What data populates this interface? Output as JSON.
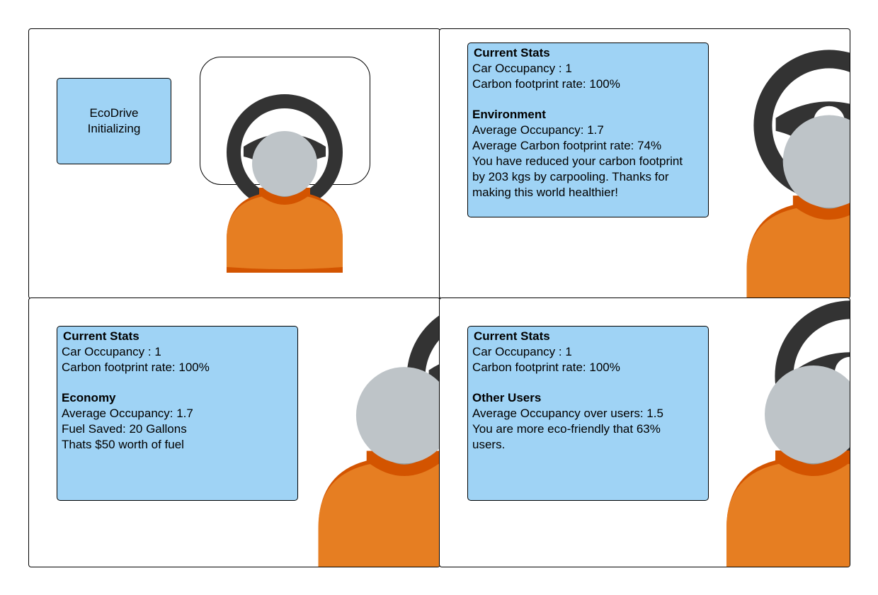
{
  "panel1": {
    "status": {
      "line1": "EcoDrive",
      "line2": "Initializing"
    },
    "icons": {
      "wheel": "steering-wheel-icon",
      "driver": "driver-avatar-icon"
    }
  },
  "panel2": {
    "current": {
      "title": "Current Stats",
      "occupancy": "Car Occupancy : 1",
      "rate": "Carbon footprint rate: 100%"
    },
    "section": {
      "title": "Environment",
      "lines": [
        "Average Occupancy: 1.7",
        "Average Carbon footprint rate: 74%",
        "You have reduced your carbon footprint",
        "by 203 kgs by carpooling. Thanks for",
        "making this world healthier!"
      ]
    }
  },
  "panel3": {
    "current": {
      "title": "Current Stats",
      "occupancy": "Car Occupancy : 1",
      "rate": "Carbon footprint rate: 100%"
    },
    "section": {
      "title": "Economy",
      "lines": [
        "Average Occupancy: 1.7",
        "Fuel Saved: 20 Gallons",
        "Thats $50 worth of fuel"
      ]
    }
  },
  "panel4": {
    "current": {
      "title": "Current Stats",
      "occupancy": "Car Occupancy : 1",
      "rate": "Carbon footprint rate: 100%"
    },
    "section": {
      "title": "Other Users",
      "lines": [
        "Average Occupancy over users: 1.5",
        "You are more eco-friendly that 63%",
        "users."
      ]
    }
  },
  "colors": {
    "box_fill": "#9fd3f5",
    "wheel": "#333333",
    "head": "#bec4c8",
    "neck": "#95a0a3",
    "shirt": "#e67e22",
    "collar": "#d35400"
  }
}
